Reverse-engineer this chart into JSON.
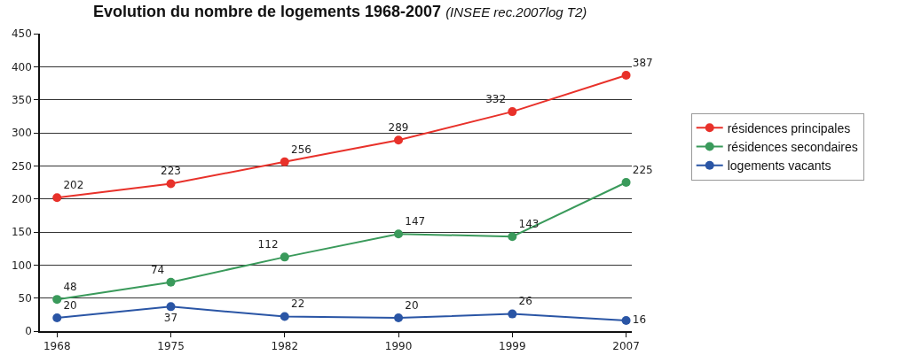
{
  "chart_data": {
    "type": "line",
    "title": "Evolution du nombre de logements 1968-2007",
    "subtitle": "(INSEE rec.2007log T2)",
    "categories": [
      "1968",
      "1975",
      "1982",
      "1990",
      "1999",
      "2007"
    ],
    "series": [
      {
        "name": "résidences principales",
        "color": "#e8312a",
        "values": [
          202,
          223,
          256,
          289,
          332,
          387
        ]
      },
      {
        "name": "résidences secondaires",
        "color": "#3a9a5b",
        "values": [
          48,
          74,
          112,
          147,
          143,
          225
        ]
      },
      {
        "name": "logements vacants",
        "color": "#2a55a5",
        "values": [
          20,
          37,
          22,
          20,
          26,
          16
        ]
      }
    ],
    "ylim": [
      0,
      450
    ],
    "yticks": [
      0,
      50,
      100,
      150,
      200,
      250,
      300,
      350,
      400,
      450
    ],
    "grid": "y",
    "legend": "right",
    "marker": "circle",
    "line_style": "solid",
    "data_labels": true
  }
}
